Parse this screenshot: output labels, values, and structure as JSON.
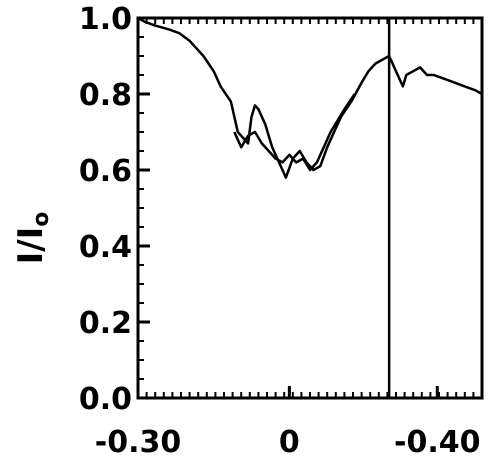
{
  "chart_data": {
    "type": "line",
    "xlabel": "",
    "ylabel": "I/I",
    "ylabel_subscript": "o",
    "xlim": [
      0,
      1
    ],
    "ylim": [
      0,
      1.0
    ],
    "x_ticks": [
      {
        "pos": 0.0,
        "label": "-0.30"
      },
      {
        "pos": 0.44,
        "label": "0"
      },
      {
        "pos": 0.87,
        "label": "-0.40"
      }
    ],
    "y_ticks": [
      {
        "value": 0.0,
        "label": "0.0"
      },
      {
        "value": 0.2,
        "label": "0.2"
      },
      {
        "value": 0.4,
        "label": "0.4"
      },
      {
        "value": 0.6,
        "label": "0.6"
      },
      {
        "value": 0.8,
        "label": "0.8"
      },
      {
        "value": 1.0,
        "label": "1.0"
      }
    ],
    "vertical_line_x": 0.73,
    "series": [
      {
        "x": [
          0.0,
          0.02,
          0.05,
          0.09,
          0.12,
          0.15,
          0.19,
          0.22,
          0.24,
          0.27,
          0.29,
          0.31,
          0.32,
          0.33,
          0.34,
          0.35,
          0.37,
          0.38,
          0.39,
          0.4,
          0.42,
          0.43,
          0.45,
          0.47,
          0.49,
          0.51,
          0.53,
          0.55,
          0.57,
          0.59,
          0.62,
          0.65,
          0.67,
          0.69,
          0.71,
          0.73,
          0.74,
          0.75,
          0.76,
          0.77,
          0.78,
          0.8,
          0.82,
          0.84,
          0.86,
          0.89,
          0.92,
          0.95,
          0.98,
          1.0
        ],
        "y": [
          1.0,
          0.99,
          0.98,
          0.97,
          0.96,
          0.94,
          0.9,
          0.86,
          0.82,
          0.78,
          0.7,
          0.68,
          0.67,
          0.74,
          0.77,
          0.76,
          0.72,
          0.69,
          0.66,
          0.64,
          0.6,
          0.58,
          0.63,
          0.65,
          0.62,
          0.6,
          0.61,
          0.66,
          0.7,
          0.74,
          0.78,
          0.83,
          0.86,
          0.88,
          0.89,
          0.9,
          0.88,
          0.86,
          0.84,
          0.82,
          0.85,
          0.86,
          0.87,
          0.85,
          0.85,
          0.84,
          0.83,
          0.82,
          0.81,
          0.8
        ]
      },
      {
        "x": [
          0.28,
          0.3,
          0.32,
          0.34,
          0.36,
          0.38,
          0.4,
          0.42,
          0.44,
          0.46,
          0.48,
          0.5,
          0.52,
          0.54,
          0.56,
          0.58,
          0.6,
          0.63
        ],
        "y": [
          0.7,
          0.66,
          0.69,
          0.7,
          0.67,
          0.65,
          0.63,
          0.62,
          0.64,
          0.62,
          0.63,
          0.6,
          0.62,
          0.66,
          0.7,
          0.73,
          0.76,
          0.8
        ]
      }
    ]
  }
}
